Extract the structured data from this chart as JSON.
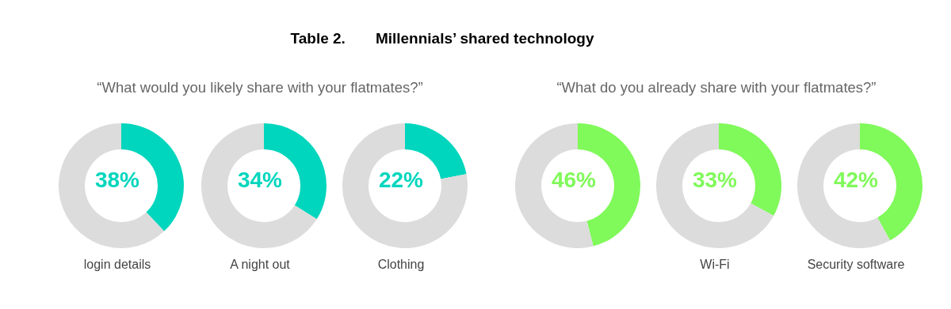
{
  "chart_data": [
    {
      "type": "donut",
      "subtitle": "“What would you likely share with your flatmates?”",
      "xlabel": "login details",
      "categories": [
        null,
        null
      ],
      "values": [
        38,
        62
      ],
      "colors": [
        "#00d6bd",
        "#dcdcdc"
      ],
      "annotations": [
        "38%"
      ]
    },
    {
      "type": "donut",
      "xlabel": "A night out",
      "categories": [
        null,
        null
      ],
      "values": [
        34,
        66
      ],
      "colors": [
        "#00d6bd",
        "#dcdcdc"
      ],
      "annotations": [
        "34%"
      ]
    },
    {
      "type": "donut",
      "title": "Table 2.  Millennials’ shared technology",
      "xlabel": "Clothing",
      "categories": [
        null,
        null
      ],
      "values": [
        22,
        78
      ],
      "colors": [
        "#00d6bd",
        "#dcdcdc"
      ],
      "annotations": [
        "22%"
      ]
    },
    {
      "type": "donut",
      "subtitle": "“What do you already share with your flatmates?”",
      "categories": [
        null,
        null
      ],
      "values": [
        46,
        54
      ],
      "colors": [
        "#80f95a",
        "#dcdcdc"
      ],
      "annotations": [
        "46%"
      ]
    },
    {
      "type": "donut",
      "xlabel": "Wi-Fi",
      "categories": [
        null,
        null
      ],
      "values": [
        33,
        67
      ],
      "colors": [
        "#80f95a",
        "#dcdcdc"
      ],
      "annotations": [
        "33%"
      ]
    },
    {
      "type": "donut",
      "xlabel": "Security software",
      "categories": [
        null,
        null
      ],
      "values": [
        42,
        58
      ],
      "colors": [
        "#80f95a",
        "#dcdcdc"
      ],
      "annotations": [
        "42%"
      ]
    }
  ]
}
